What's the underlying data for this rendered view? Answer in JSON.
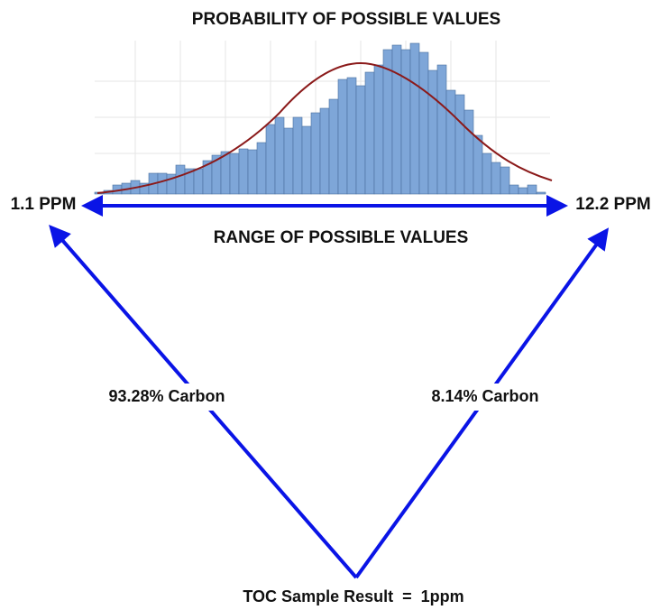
{
  "header": {
    "title": "PROBABILITY OF POSSIBLE VALUES"
  },
  "histogram": {
    "values": [
      2,
      4,
      10,
      12,
      15,
      12,
      23,
      23,
      22,
      32,
      28,
      28,
      37,
      43,
      47,
      45,
      50,
      49,
      57,
      77,
      85,
      73,
      85,
      75,
      90,
      95,
      105,
      127,
      129,
      120,
      135,
      143,
      160,
      165,
      160,
      167,
      157,
      137,
      143,
      115,
      110,
      93,
      65,
      45,
      35,
      30,
      10,
      7,
      10,
      2
    ]
  },
  "range": {
    "min_label": "1.1 PPM",
    "max_label": "12.2 PPM",
    "label": "RANGE OF POSSIBLE VALUES"
  },
  "branches": {
    "left": "93.28% Carbon",
    "right": "8.14% Carbon"
  },
  "result": "TOC Sample Result  =  1ppm"
}
